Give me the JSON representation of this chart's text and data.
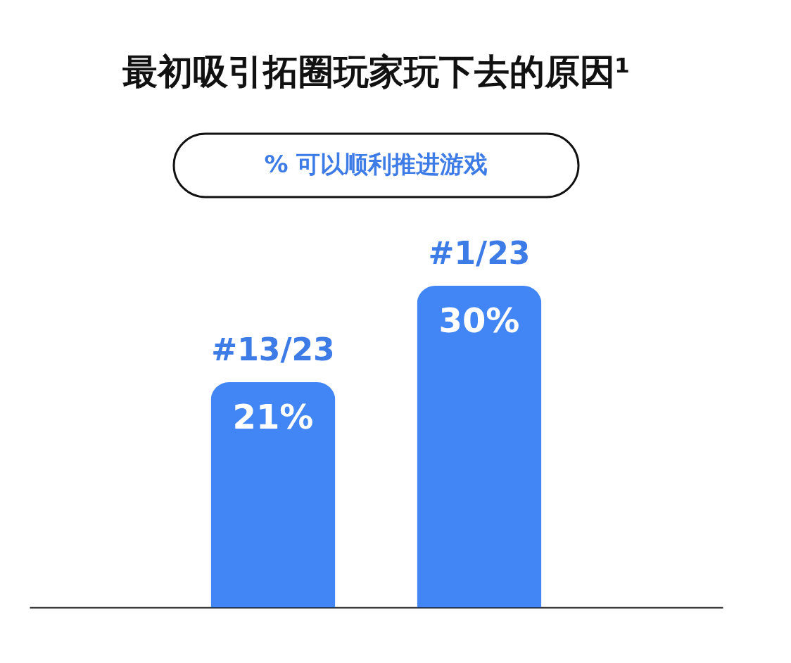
{
  "chart_data": {
    "type": "bar",
    "title": "最初吸引拓圈玩家玩下去的原因¹",
    "subtitle": "% 可以顺利推进游戏",
    "categories": [
      null,
      null
    ],
    "values": [
      21,
      30
    ],
    "color": "#4285f4",
    "value_labels": [
      "21%",
      "30%"
    ],
    "annotations": [
      {
        "text": "#13/23",
        "y": 21
      },
      {
        "text": "#1/23",
        "y": 30
      }
    ],
    "tick_labels": false
  }
}
